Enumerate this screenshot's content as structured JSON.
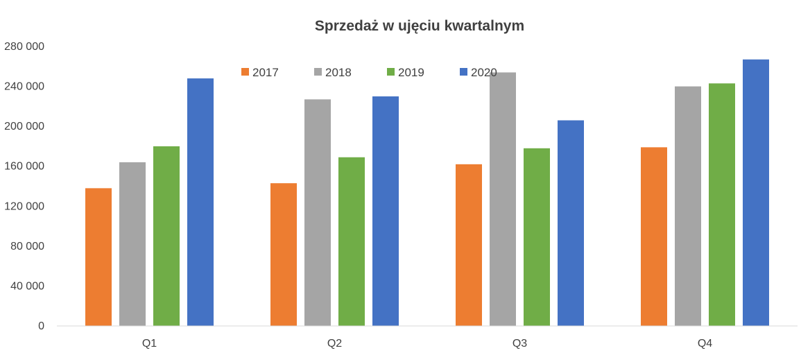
{
  "chart_data": {
    "type": "bar",
    "title": "Sprzedaż w ujęciu kwartalnym",
    "xlabel": "",
    "ylabel": "",
    "categories": [
      "Q1",
      "Q2",
      "Q3",
      "Q4"
    ],
    "ylim": [
      0,
      280000
    ],
    "yticks": [
      0,
      40000,
      80000,
      120000,
      160000,
      200000,
      240000,
      280000
    ],
    "ytick_labels": [
      "0",
      "40 000",
      "80 000",
      "120 000",
      "160 000",
      "200 000",
      "240 000",
      "280 000"
    ],
    "grid": false,
    "legend_position": "top-center",
    "series": [
      {
        "name": "2017",
        "color": "#ED7D31",
        "values": [
          138000,
          143000,
          162000,
          179000
        ]
      },
      {
        "name": "2018",
        "color": "#A5A5A5",
        "values": [
          164000,
          227000,
          254000,
          240000
        ]
      },
      {
        "name": "2019",
        "color": "#70AD47",
        "values": [
          180000,
          169000,
          178000,
          243000
        ]
      },
      {
        "name": "2020",
        "color": "#4472C4",
        "values": [
          248000,
          230000,
          206000,
          267000
        ]
      }
    ]
  }
}
